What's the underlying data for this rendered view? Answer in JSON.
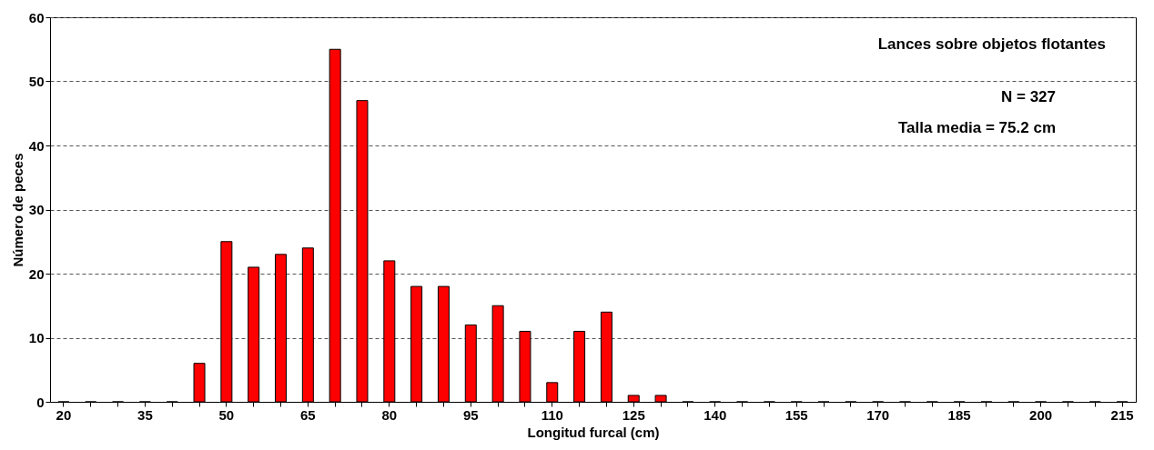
{
  "chart_data": {
    "type": "bar",
    "xlabel": "Longitud furcal (cm)",
    "ylabel": "Número de peces",
    "categories": [
      "20",
      null,
      null,
      "35",
      null,
      null,
      "50",
      null,
      null,
      "65",
      null,
      null,
      "80",
      null,
      null,
      "95",
      null,
      null,
      "110",
      null,
      null,
      "125",
      null,
      null,
      "140",
      null,
      null,
      "155",
      null,
      null,
      "170",
      null,
      null,
      "185",
      null,
      null,
      "200",
      null,
      null,
      "215"
    ],
    "values": [
      0,
      0,
      0,
      0,
      0,
      6,
      25,
      21,
      23,
      24,
      55,
      47,
      22,
      18,
      18,
      12,
      15,
      11,
      3,
      11,
      14,
      1,
      1,
      0,
      0,
      0,
      0,
      0,
      0,
      0,
      0,
      0,
      0,
      0,
      0,
      0,
      0,
      0,
      0,
      0
    ],
    "color": "#ff0000",
    "ylim": [
      0,
      60
    ],
    "yticks": [
      0,
      10,
      20,
      30,
      40,
      50,
      60
    ],
    "grid": "y",
    "annotations": [
      "Lances sobre objetos flotantes",
      "N = 327",
      "Talla media = 75.2 cm"
    ]
  }
}
